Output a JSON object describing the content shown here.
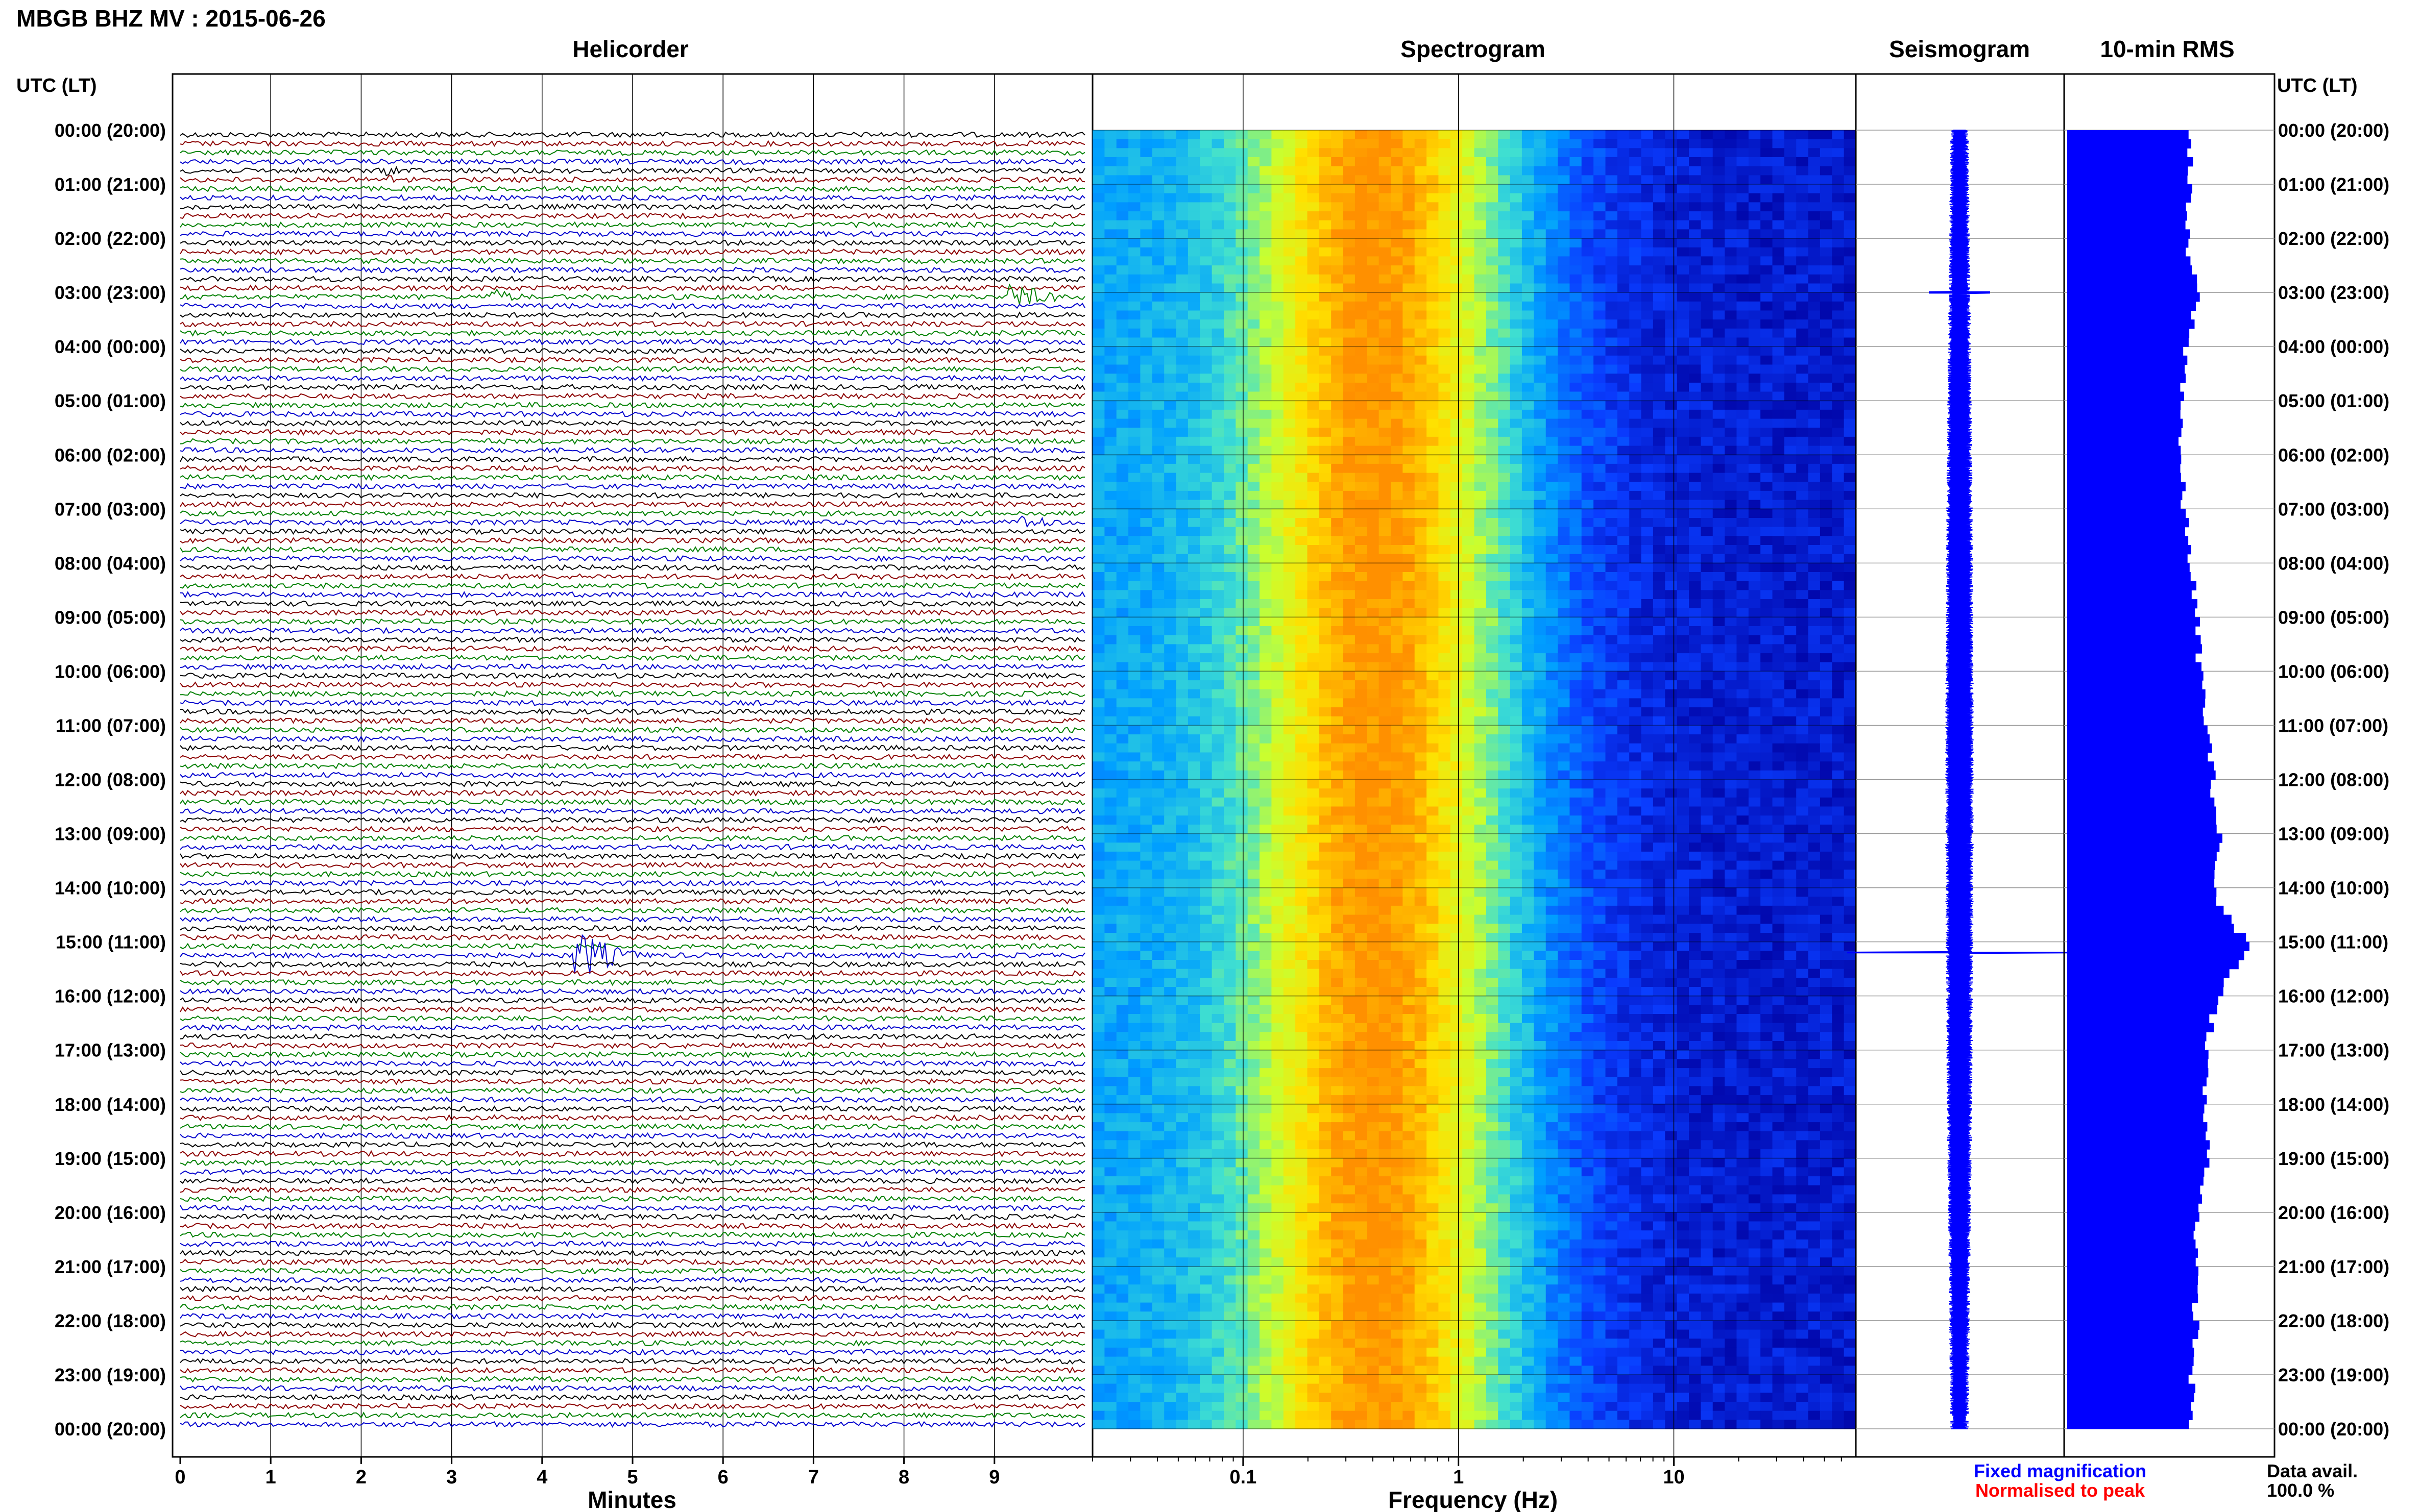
{
  "header": {
    "title": "MBGB BHZ MV : 2015-06-26",
    "utc_label_left": "UTC (LT)",
    "utc_label_right": "UTC (LT)"
  },
  "panels": {
    "helicorder": "Helicorder",
    "spectrogram": "Spectrogram",
    "seismogram": "Seismogram",
    "rms": "10-min RMS"
  },
  "hour_labels": [
    "00:00 (20:00)",
    "01:00 (21:00)",
    "02:00 (22:00)",
    "03:00 (23:00)",
    "04:00 (00:00)",
    "05:00 (01:00)",
    "06:00 (02:00)",
    "07:00 (03:00)",
    "08:00 (04:00)",
    "09:00 (05:00)",
    "10:00 (06:00)",
    "11:00 (07:00)",
    "12:00 (08:00)",
    "13:00 (09:00)",
    "14:00 (10:00)",
    "15:00 (11:00)",
    "16:00 (12:00)",
    "17:00 (13:00)",
    "18:00 (14:00)",
    "19:00 (15:00)",
    "20:00 (16:00)",
    "21:00 (17:00)",
    "22:00 (18:00)",
    "23:00 (19:00)",
    "00:00 (20:00)"
  ],
  "footer": {
    "minutes_label": "Minutes",
    "frequency_label": "Frequency (Hz)",
    "fixed_magnification": "Fixed magnification",
    "normalised_to_peak": "Normalised to peak",
    "data_avail_label": "Data avail.",
    "data_avail_value": "100.0 %"
  },
  "colors": {
    "trace_cycle": [
      "#000000",
      "#8b0000",
      "#008000",
      "#0000cd"
    ],
    "seismogram": "#0000ff",
    "rms": "#0000ff",
    "fixed_magnification": "#0000ff",
    "normalised_to_peak": "#ff0000"
  },
  "chart_data": [
    {
      "type": "line",
      "panel": "Helicorder",
      "xlabel": "Minutes",
      "xlim": [
        0,
        10
      ],
      "x_ticks": [
        "0",
        "1",
        "2",
        "3",
        "4",
        "5",
        "6",
        "7",
        "8",
        "9"
      ],
      "rows": 144,
      "row_minutes": 10,
      "events": [
        {
          "utc_hour": 0.75,
          "minute": 2.4,
          "relative_amplitude": 2
        },
        {
          "utc_hour": 3.0,
          "minute": 3.5,
          "relative_amplitude": 3
        },
        {
          "utc_hour": 3.0,
          "minute": 9.3,
          "relative_amplitude": 5
        },
        {
          "utc_hour": 7.2,
          "minute": 9.4,
          "relative_amplitude": 3
        },
        {
          "utc_hour": 15.2,
          "minute": 4.5,
          "relative_amplitude": 9
        }
      ]
    },
    {
      "type": "heatmap",
      "panel": "Spectrogram",
      "xlabel": "Frequency (Hz)",
      "x_scale": "log",
      "xlim": [
        0.02,
        70
      ],
      "x_ticks": [
        "0.1",
        "1",
        "10"
      ],
      "peak_frequency_hz": 0.4,
      "colormap": [
        "#0000a0",
        "#0a3cff",
        "#00a0ff",
        "#40e0d0",
        "#c8ff30",
        "#ffe000",
        "#ff9000"
      ]
    },
    {
      "type": "line",
      "panel": "Seismogram",
      "spike_hours": [
        3.0,
        15.2
      ]
    },
    {
      "type": "bar",
      "panel": "10-min RMS",
      "interval_minutes": 10,
      "values_hourly": [
        0.82,
        0.8,
        0.78,
        0.86,
        0.78,
        0.76,
        0.74,
        0.77,
        0.82,
        0.85,
        0.88,
        0.92,
        0.96,
        1.0,
        0.96,
        1.2,
        0.98,
        0.92,
        0.9,
        0.93,
        0.86,
        0.84,
        0.85,
        0.82,
        0.82
      ]
    }
  ]
}
